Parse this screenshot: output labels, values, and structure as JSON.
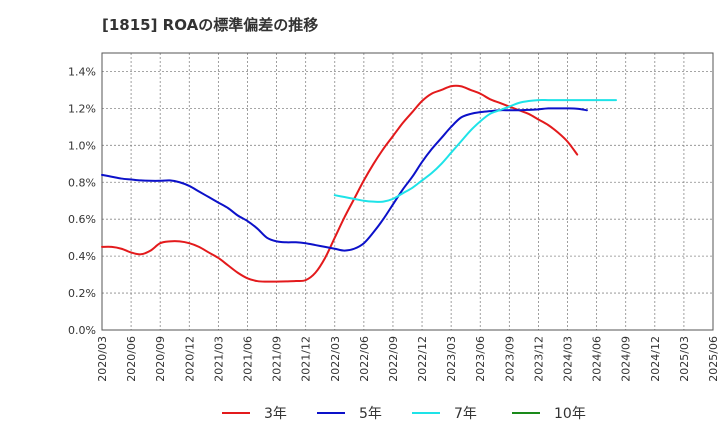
{
  "chart_data": {
    "type": "line",
    "title": "[1815]  ROAの標準偏差の推移",
    "xlabel": "",
    "ylabel": "",
    "ylim": [
      0,
      1.5
    ],
    "y_ticks": [
      {
        "v": 0.0,
        "label": "0.0%"
      },
      {
        "v": 0.2,
        "label": "0.2%"
      },
      {
        "v": 0.4,
        "label": "0.4%"
      },
      {
        "v": 0.6,
        "label": "0.6%"
      },
      {
        "v": 0.8,
        "label": "0.8%"
      },
      {
        "v": 1.0,
        "label": "1.0%"
      },
      {
        "v": 1.2,
        "label": "1.2%"
      },
      {
        "v": 1.4,
        "label": "1.4%"
      }
    ],
    "x_ticks": [
      "2020/03",
      "2020/06",
      "2020/09",
      "2020/12",
      "2021/03",
      "2021/06",
      "2021/09",
      "2021/12",
      "2022/03",
      "2022/06",
      "2022/09",
      "2022/12",
      "2023/03",
      "2023/06",
      "2023/09",
      "2023/12",
      "2024/03",
      "2024/06",
      "2024/09",
      "2024/12",
      "2025/03",
      "2025/06"
    ],
    "grid": true,
    "legend_position": "bottom",
    "series": [
      {
        "name": "3年",
        "color": "#e31a1c",
        "start": "2020/03",
        "values": [
          0.45,
          0.45,
          0.44,
          0.42,
          0.41,
          0.43,
          0.47,
          0.48,
          0.48,
          0.47,
          0.45,
          0.42,
          0.39,
          0.35,
          0.31,
          0.28,
          0.265,
          0.262,
          0.262,
          0.263,
          0.265,
          0.27,
          0.31,
          0.39,
          0.5,
          0.61,
          0.71,
          0.81,
          0.9,
          0.98,
          1.05,
          1.12,
          1.18,
          1.24,
          1.28,
          1.3,
          1.32,
          1.32,
          1.3,
          1.28,
          1.25,
          1.23,
          1.21,
          1.19,
          1.17,
          1.14,
          1.11,
          1.07,
          1.02,
          0.95
        ]
      },
      {
        "name": "5年",
        "color": "#0c11c9",
        "start": "2020/03",
        "values": [
          0.84,
          0.83,
          0.82,
          0.815,
          0.81,
          0.808,
          0.808,
          0.81,
          0.8,
          0.78,
          0.75,
          0.72,
          0.69,
          0.66,
          0.62,
          0.59,
          0.55,
          0.5,
          0.48,
          0.475,
          0.475,
          0.47,
          0.46,
          0.45,
          0.44,
          0.43,
          0.44,
          0.47,
          0.53,
          0.6,
          0.68,
          0.76,
          0.83,
          0.91,
          0.98,
          1.04,
          1.1,
          1.15,
          1.17,
          1.18,
          1.185,
          1.19,
          1.19,
          1.19,
          1.192,
          1.195,
          1.2,
          1.2,
          1.2,
          1.198,
          1.19
        ]
      },
      {
        "name": "7年",
        "color": "#1ee3e8",
        "start": "2022/03",
        "values": [
          0.73,
          0.72,
          0.71,
          0.7,
          0.695,
          0.695,
          0.71,
          0.74,
          0.77,
          0.81,
          0.85,
          0.9,
          0.96,
          1.02,
          1.08,
          1.13,
          1.17,
          1.19,
          1.21,
          1.23,
          1.24,
          1.245,
          1.245,
          1.245,
          1.245,
          1.245,
          1.245,
          1.245,
          1.245,
          1.245
        ]
      },
      {
        "name": "10年",
        "color": "#1a8a1a",
        "start": "2020/03",
        "values": []
      }
    ]
  }
}
